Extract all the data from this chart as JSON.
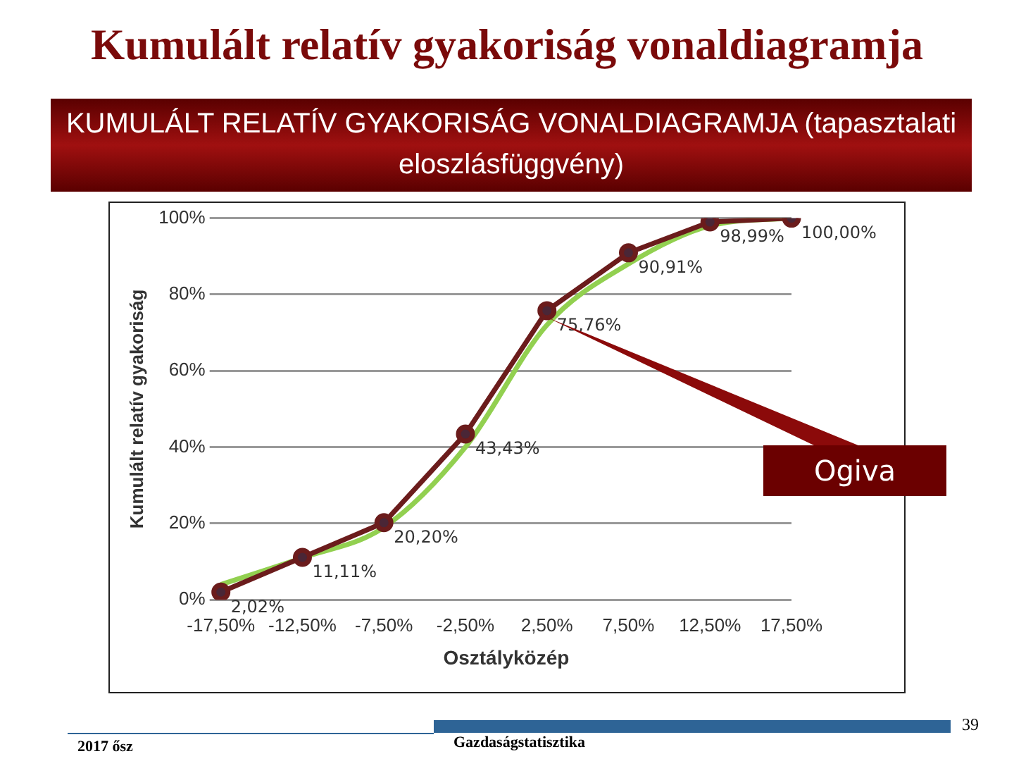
{
  "chart_data": {
    "type": "line",
    "title": "Kumulált relatív gyakoriság vonaldiagramja",
    "subtitle": "KUMULÁLT RELATÍV GYAKORISÁG VONALDIAGRAMJA (tapasztalati eloszlásfüggvény)",
    "xlabel": "Osztályközép",
    "ylabel": "Kumulált relatív gyakoriság",
    "categories": [
      "-17,50%",
      "-12,50%",
      "-7,50%",
      "-2,50%",
      "2,50%",
      "7,50%",
      "12,50%",
      "17,50%"
    ],
    "series": [
      {
        "color": "#6b1c1c",
        "marker": "circle",
        "values": [
          2.02,
          11.11,
          20.2,
          43.43,
          75.76,
          90.91,
          98.99,
          100
        ],
        "value_labels": [
          "2,02%",
          "11,11%",
          "20,20%",
          "43,43%",
          "75,76%",
          "90,91%",
          "98,99%",
          "100,00%"
        ]
      },
      {
        "color": "#92d050",
        "marker": "none",
        "values": [
          4,
          11,
          19,
          40,
          72,
          88,
          98,
          100
        ]
      }
    ],
    "ylim": [
      0,
      100
    ],
    "yticks": [
      {
        "value": 0,
        "label": "0%"
      },
      {
        "value": 20,
        "label": "20%"
      },
      {
        "value": 40,
        "label": "40%"
      },
      {
        "value": 60,
        "label": "60%"
      },
      {
        "value": 80,
        "label": "80%"
      },
      {
        "value": 100,
        "label": "100%"
      }
    ],
    "grid": "y",
    "legend": false,
    "annotations": [
      {
        "text": "Ogiva",
        "x": "2,50%",
        "y": 74
      },
      "2017 ősz",
      "Gazdaságstatisztika",
      "39"
    ]
  }
}
